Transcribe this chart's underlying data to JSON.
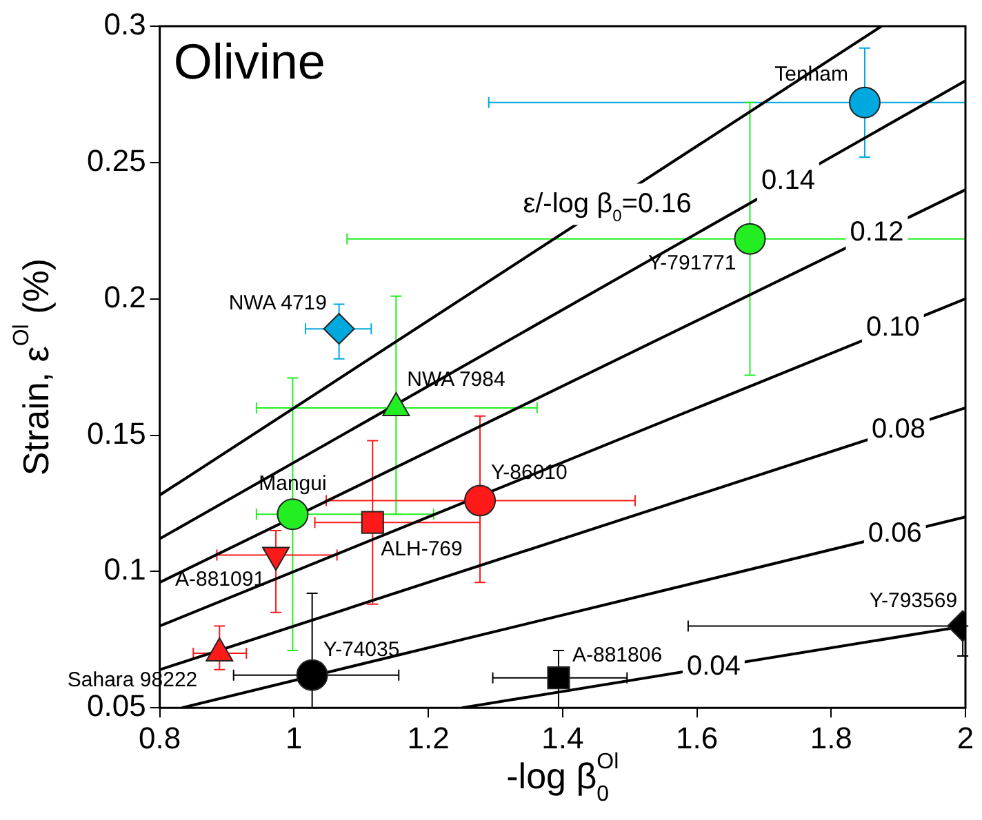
{
  "chart_data": {
    "type": "scatter",
    "title": "Olivine",
    "xlabel": "-log β$_{0}$$^{Ol}$",
    "ylabel": "Strain, ε$^{Ol}$ (%)",
    "xlim": [
      0.8,
      2
    ],
    "xticks": [
      0.8,
      1,
      1.2,
      1.4,
      1.6,
      1.8,
      2
    ],
    "ylim": [
      0.05,
      0.3
    ],
    "yticks": [
      0.05,
      0.1,
      0.15,
      0.2,
      0.25,
      0.3
    ],
    "grid": false,
    "legend": false,
    "series": [
      {
        "name": "Tenham",
        "color": "#00a8e0",
        "x": [
          1.85
        ],
        "values": [
          0.272
        ],
        "xerrors": [
          [
            1.29,
            2.0
          ]
        ],
        "errors": [
          [
            0.252,
            0.292
          ]
        ]
      },
      {
        "name": "NWA 4719",
        "color": "#00a8e0",
        "marker": "diamond",
        "x": [
          1.067
        ],
        "values": [
          0.189
        ],
        "xerrors": [
          [
            1.017,
            1.115
          ]
        ],
        "errors": [
          [
            0.178,
            0.198
          ]
        ]
      },
      {
        "name": "NWA 7984",
        "color": "#22ee22",
        "marker": "triangle",
        "x": [
          1.152
        ],
        "values": [
          0.16
        ],
        "xerrors": [
          [
            0.944,
            1.362
          ]
        ],
        "errors": [
          [
            0.121,
            0.201
          ]
        ]
      },
      {
        "name": "Y-791771",
        "color": "#22ee22",
        "marker": "circle",
        "x": [
          1.679
        ],
        "values": [
          0.222
        ],
        "xerrors": [
          [
            1.079,
            2.0
          ]
        ],
        "errors": [
          [
            0.172,
            0.272
          ]
        ]
      },
      {
        "name": "Mangui",
        "color": "#22ee22",
        "x": [
          0.998
        ],
        "values": [
          0.121
        ],
        "xerrors": [
          [
            0.944,
            1.208
          ]
        ],
        "errors": [
          [
            0.071,
            0.171
          ]
        ]
      },
      {
        "name": "Y-86010",
        "color": "#ff1a1a",
        "marker": "circle",
        "x": [
          1.277
        ],
        "values": [
          0.126
        ],
        "xerrors": [
          [
            1.048,
            1.508
          ]
        ],
        "errors": [
          [
            0.096,
            0.157
          ]
        ]
      },
      {
        "name": "ALH-769",
        "color": "#ff1a1a",
        "marker": "square",
        "x": [
          1.117
        ],
        "values": [
          0.118
        ],
        "xerrors": [
          [
            1.031,
            1.277
          ]
        ],
        "errors": [
          [
            0.088,
            0.148
          ]
        ]
      },
      {
        "name": "A-881091",
        "color": "#ff1a1a",
        "marker": "triangle-down",
        "x": [
          0.973
        ],
        "values": [
          0.106
        ],
        "xerrors": [
          [
            0.885,
            1.064
          ]
        ],
        "errors": [
          [
            0.085,
            0.115
          ]
        ]
      },
      {
        "name": "Sahara 98222",
        "color": "#ff1a1a",
        "marker": "triangle",
        "x": [
          0.889
        ],
        "values": [
          0.07
        ],
        "xerrors": [
          [
            0.85,
            0.929
          ]
        ],
        "errors": [
          [
            0.064,
            0.08
          ]
        ]
      },
      {
        "name": "Y-74035",
        "color": "#000000",
        "marker": "circle",
        "x": [
          1.027
        ],
        "values": [
          0.062
        ],
        "xerrors": [
          [
            0.91,
            1.156
          ]
        ],
        "errors": [
          [
            0.05,
            0.092
          ]
        ]
      },
      {
        "name": "A-881806",
        "color": "#000000",
        "marker": "square",
        "x": [
          1.394
        ],
        "values": [
          0.061
        ],
        "xerrors": [
          [
            1.296,
            1.496
          ]
        ],
        "errors": [
          [
            0.05,
            0.071
          ]
        ]
      },
      {
        "name": "Y-793569",
        "color": "#000000",
        "marker": "diamond",
        "x": [
          1.996
        ],
        "values": [
          0.08
        ],
        "xerrors": [
          [
            1.587,
            2.0
          ]
        ],
        "errors": [
          [
            0.069,
            0.08
          ]
        ]
      },
      {
        "type": "line",
        "name": "ε/-log β$_{0}$=0.16",
        "color": "#000000",
        "x": [
          0.8,
          1.875
        ],
        "values": [
          0.128,
          0.3
        ]
      },
      {
        "type": "line",
        "name": "0.14",
        "color": "#000000",
        "x": [
          0.8,
          2
        ],
        "values": [
          0.112,
          0.28
        ]
      },
      {
        "type": "line",
        "name": "0.12",
        "color": "#000000",
        "x": [
          0.8,
          2
        ],
        "values": [
          0.096,
          0.24
        ]
      },
      {
        "type": "line",
        "name": "0.10",
        "color": "#000000",
        "x": [
          0.8,
          2
        ],
        "values": [
          0.08,
          0.2
        ]
      },
      {
        "type": "line",
        "name": "0.08",
        "color": "#000000",
        "x": [
          0.8,
          2
        ],
        "values": [
          0.064,
          0.16
        ]
      },
      {
        "type": "line",
        "name": "0.06",
        "color": "#000000",
        "x": [
          0.833,
          2
        ],
        "values": [
          0.05,
          0.12
        ]
      },
      {
        "type": "line",
        "name": "0.04",
        "color": "#000000",
        "x": [
          1.25,
          2
        ],
        "values": [
          0.05,
          0.08
        ]
      }
    ]
  }
}
